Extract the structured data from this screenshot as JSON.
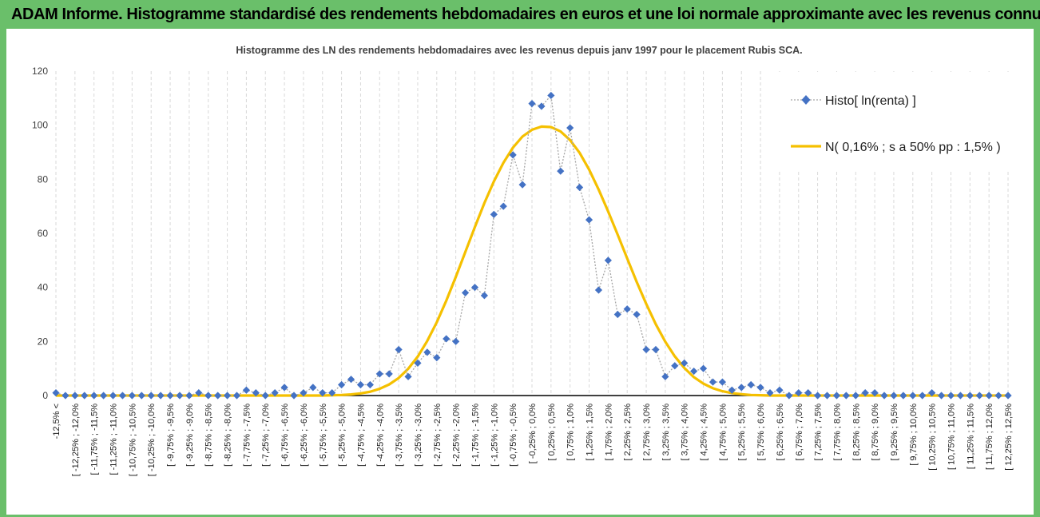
{
  "window": {
    "title": "ADAM Informe. Histogramme standardisé des rendements hebdomadaires en euros et une loi normale approximante avec les revenus connus distribués"
  },
  "colors": {
    "frame": "#6abf6a",
    "histo": "#4472c4",
    "normal": "#f5c000",
    "grid": "#d9d9d9"
  },
  "chart_data": {
    "type": "line",
    "title": "Histogramme des LN des rendements hebdomadaires avec les revenus depuis janv 1997 pour le placement Rubis SCA.",
    "xlabel": "",
    "ylabel": "",
    "ylim": [
      0,
      120
    ],
    "yticks": [
      0,
      20,
      40,
      60,
      80,
      100,
      120
    ],
    "grid": "vertical dashed",
    "legend_position": "top-right",
    "categories": [
      "-12,5% <",
      "[ -12,25% ; -12,0%",
      "[ -11,75% ; -11,5%",
      "[ -11,25% ; -11,0%",
      "[ -10,75% ; -10,5%",
      "[ -10,25% ; -10,0%",
      "[ -9,75% ; -9,5%",
      "[ -9,25% ; -9,0%",
      "[ -8,75% ; -8,5%",
      "[ -8,25% ; -8,0%",
      "[ -7,75% ; -7,5%",
      "[ -7,25% ; -7,0%",
      "[ -6,75% ; -6,5%",
      "[ -6,25% ; -6,0%",
      "[ -5,75% ; -5,5%",
      "[ -5,25% ; -5,0%",
      "[ -4,75% ; -4,5%",
      "[ -4,25% ; -4,0%",
      "[ -3,75% ; -3,5%",
      "[ -3,25% ; -3,0%",
      "[ -2,75% ; -2,5%",
      "[ -2,25% ; -2,0%",
      "[ -1,75% ; -1,5%",
      "[ -1,25% ; -1,0%",
      "[ -0,75% ; -0,5%",
      "[ -0,25% ; 0,0%",
      "[ 0,25% ; 0,5%",
      "[ 0,75% ; 1,0%",
      "[ 1,25% ; 1,5%",
      "[ 1,75% ; 2,0%",
      "[ 2,25% ; 2,5%",
      "[ 2,75% ; 3,0%",
      "[ 3,25% ; 3,5%",
      "[ 3,75% ; 4,0%",
      "[ 4,25% ; 4,5%",
      "[ 4,75% ; 5,0%",
      "[ 5,25% ; 5,5%",
      "[ 5,75% ; 6,0%",
      "[ 6,25% ; 6,5%",
      "[ 6,75% ; 7,0%",
      "[ 7,25% ; 7,5%",
      "[ 7,75% ; 8,0%",
      "[ 8,25% ; 8,5%",
      "[ 8,75% ; 9,0%",
      "[ 9,25% ; 9,5%",
      "[ 9,75% ; 10,0%",
      "[ 10,25% ; 10,5%",
      "[ 10,75% ; 11,0%",
      "[ 11,25% ; 11,5%",
      "[ 11,75% ; 12,0%",
      "[ 12,25% ; 12,5%"
    ],
    "x": [
      -12.5,
      -12.25,
      -12.0,
      -11.75,
      -11.5,
      -11.25,
      -11.0,
      -10.75,
      -10.5,
      -10.25,
      -10.0,
      -9.75,
      -9.5,
      -9.25,
      -9.0,
      -8.75,
      -8.5,
      -8.25,
      -8.0,
      -7.75,
      -7.5,
      -7.25,
      -7.0,
      -6.75,
      -6.5,
      -6.25,
      -6.0,
      -5.75,
      -5.5,
      -5.25,
      -5.0,
      -4.75,
      -4.5,
      -4.25,
      -4.0,
      -3.75,
      -3.5,
      -3.25,
      -3.0,
      -2.75,
      -2.5,
      -2.25,
      -2.0,
      -1.75,
      -1.5,
      -1.25,
      -1.0,
      -0.75,
      -0.5,
      -0.25,
      0.0,
      0.25,
      0.5,
      0.75,
      1.0,
      1.25,
      1.5,
      1.75,
      2.0,
      2.25,
      2.5,
      2.75,
      3.0,
      3.25,
      3.5,
      3.75,
      4.0,
      4.25,
      4.5,
      4.75,
      5.0,
      5.25,
      5.5,
      5.75,
      6.0,
      6.25,
      6.5,
      6.75,
      7.0,
      7.25,
      7.5,
      7.75,
      8.0,
      8.25,
      8.5,
      8.75,
      9.0,
      9.25,
      9.5,
      9.75,
      10.0,
      10.25,
      10.5,
      10.75,
      11.0,
      11.25,
      11.5,
      11.75,
      12.0,
      12.25,
      12.5
    ],
    "series": [
      {
        "name": "Histo[ ln(renta) ]",
        "style": "dotted-line-diamond-markers",
        "values": [
          1,
          0,
          0,
          0,
          0,
          0,
          0,
          0,
          0,
          0,
          0,
          0,
          0,
          0,
          0,
          1,
          0,
          0,
          0,
          0,
          2,
          1,
          0,
          1,
          3,
          0,
          1,
          3,
          1,
          1,
          4,
          6,
          4,
          4,
          8,
          8,
          17,
          7,
          12,
          16,
          14,
          21,
          20,
          38,
          40,
          37,
          67,
          70,
          89,
          78,
          108,
          107,
          111,
          83,
          99,
          77,
          65,
          39,
          50,
          30,
          32,
          30,
          17,
          17,
          7,
          11,
          12,
          9,
          10,
          5,
          5,
          2,
          3,
          4,
          3,
          1,
          2,
          0,
          1,
          1,
          0,
          0,
          0,
          0,
          0,
          1,
          1,
          0,
          0,
          0,
          0,
          0,
          1,
          0,
          0,
          0,
          0,
          0,
          0,
          0,
          0
        ]
      },
      {
        "name": "N( 0,16% ; s a 50% pp : 1,5% )",
        "style": "smooth-line",
        "values": [
          0,
          0,
          0,
          0,
          0,
          0,
          0,
          0,
          0,
          0,
          0,
          0,
          0,
          0,
          0,
          0,
          0,
          0,
          0,
          0,
          0,
          0,
          0,
          0,
          0,
          0,
          0,
          0,
          0,
          0.1,
          0.2,
          0.4,
          0.8,
          1.4,
          2.5,
          4.1,
          6.5,
          9.9,
          14.4,
          20.2,
          27.1,
          35.1,
          43.9,
          53.1,
          62.3,
          71.2,
          79.2,
          86.1,
          91.7,
          95.8,
          98.3,
          99.5,
          99.3,
          97.7,
          94.5,
          89.8,
          83.6,
          76.2,
          68.1,
          59.5,
          50.7,
          42.0,
          33.9,
          26.4,
          19.9,
          14.5,
          10.2,
          6.8,
          4.4,
          2.7,
          1.6,
          0.9,
          0.5,
          0.2,
          0.1,
          0,
          0,
          0,
          0,
          0,
          0,
          0,
          0,
          0,
          0,
          0,
          0,
          0,
          0,
          0,
          0,
          0,
          0,
          0,
          0,
          0,
          0,
          0,
          0,
          0,
          0
        ]
      }
    ]
  }
}
